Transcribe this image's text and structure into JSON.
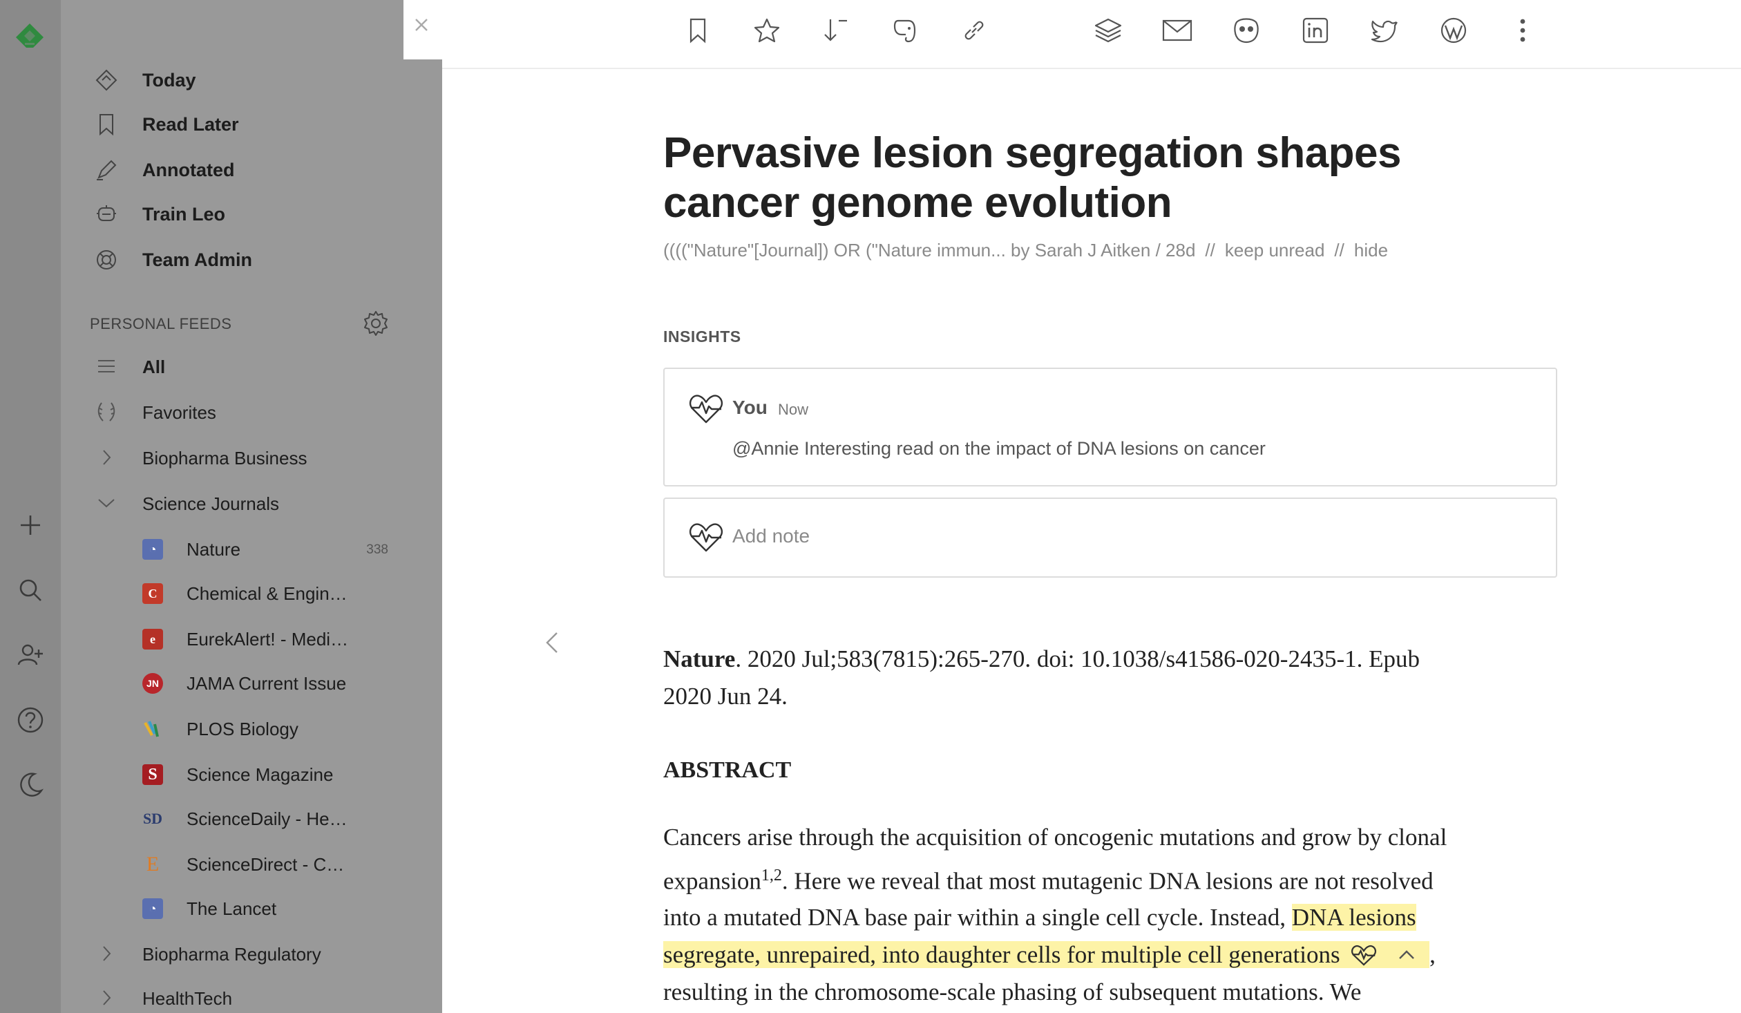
{
  "sidebar": {
    "nav": [
      {
        "label": "Today",
        "icon": "today-icon"
      },
      {
        "label": "Read Later",
        "icon": "bookmark-icon"
      },
      {
        "label": "Annotated",
        "icon": "highlighter-icon"
      },
      {
        "label": "Train Leo",
        "icon": "leo-robot-icon"
      },
      {
        "label": "Team Admin",
        "icon": "lifebuoy-icon"
      }
    ],
    "section_title": "PERSONAL FEEDS",
    "feeds": {
      "all": "All",
      "favorites": "Favorites",
      "biopharma_business": "Biopharma Business",
      "science_journals": "Science Journals",
      "biopharma_regulatory": "Biopharma Regulatory",
      "healthtech": "HealthTech"
    },
    "sources": [
      {
        "label": "Nature",
        "count": "338",
        "color": "#5a6fb0"
      },
      {
        "label": "Chemical & Engin…",
        "color": "#c23a2a"
      },
      {
        "label": "EurekAlert! - Medi…",
        "color": "#b53127"
      },
      {
        "label": "JAMA Current Issue",
        "color": "#b8262b"
      },
      {
        "label": "PLOS Biology",
        "color": "#3aa0c8"
      },
      {
        "label": "Science Magazine",
        "color": "#a51d22"
      },
      {
        "label": "ScienceDaily - He…",
        "color": "#2b3c6e"
      },
      {
        "label": "ScienceDirect - C…",
        "color": "#e07b22"
      },
      {
        "label": "The Lancet",
        "color": "#5a6fb0"
      }
    ]
  },
  "toolbar": {
    "icons": [
      "bookmark-icon",
      "star-icon",
      "sort-icon",
      "evernote-icon",
      "link-icon",
      "layers-icon",
      "mail-icon",
      "hootsuite-icon",
      "linkedin-icon",
      "twitter-icon",
      "wordpress-icon",
      "more-icon"
    ]
  },
  "article": {
    "title": "Pervasive lesion segregation shapes cancer genome evolution",
    "meta": {
      "source_author": "((((\"Nature\"[Journal]) OR (\"Nature immun... by Sarah J Aitken / 28d",
      "sep1": "//",
      "keep_unread": "keep unread",
      "sep2": "//",
      "hide": "hide"
    },
    "insights_title": "INSIGHTS",
    "insight": {
      "author": "You",
      "time": "Now",
      "text": "@Annie Interesting read on the impact of DNA lesions on cancer"
    },
    "add_note": "Add note",
    "citation": {
      "journal": "Nature",
      "rest": ". 2020 Jul;583(7815):265-270. doi: 10.1038/s41586-020-2435-1. Epub",
      "line2": "2020 Jun 24."
    },
    "abstract_title": "ABSTRACT",
    "abstract": {
      "l1": "Cancers arise through the acquisition of oncogenic mutations and grow by clonal",
      "l2a": "expansion",
      "l2sup": "1,2",
      "l2b": ". Here we reveal that most mutagenic DNA lesions are not resolved",
      "l3a": "into a mutated DNA base pair within a single cell cycle. Instead, ",
      "l3hl": "DNA lesions",
      "l4hl": "segregate, unrepaired, into daughter cells for multiple cell generations",
      "l4b": ",",
      "l5": "resulting in the chromosome-scale phasing of subsequent mutations. We"
    }
  },
  "colors": {
    "rail": "#8a8a8a",
    "sidebar": "#999999",
    "brand": "#2bb24c",
    "highlight": "#fdf3a7"
  }
}
